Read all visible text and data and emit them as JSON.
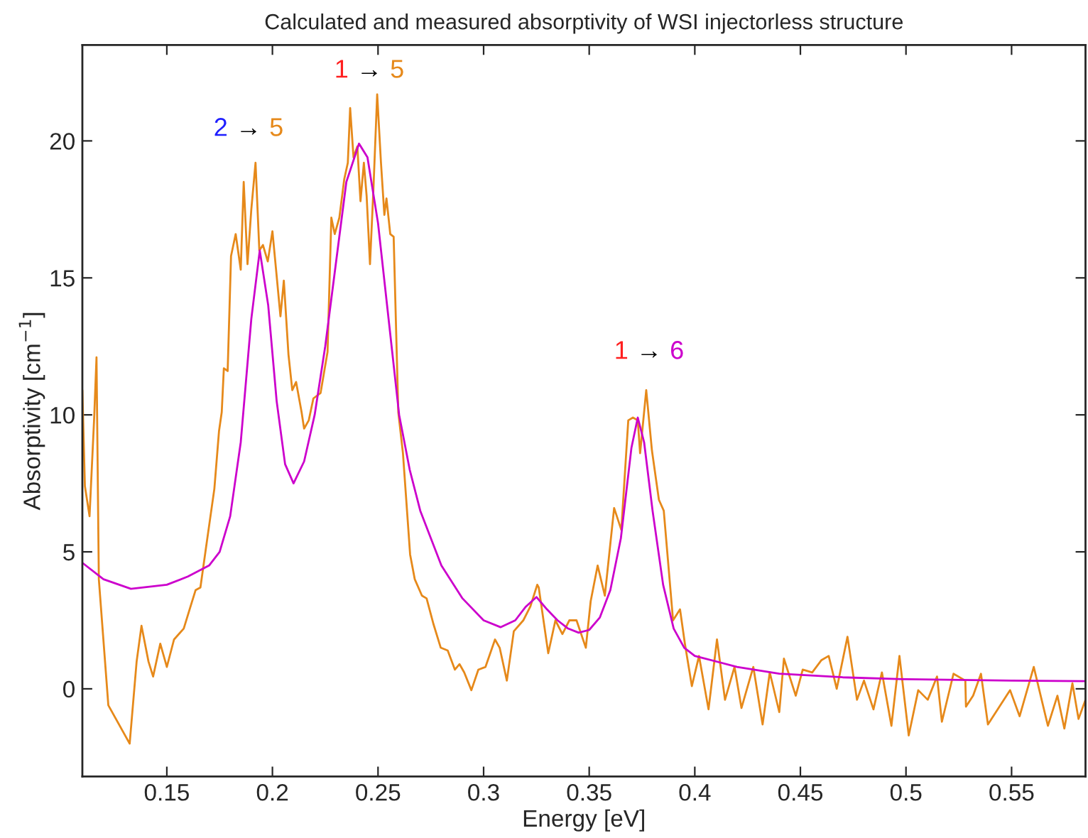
{
  "chart_data": {
    "type": "line",
    "title": "Calculated and measured absorptivity of WSI injectorless structure",
    "xlabel": "Energy [eV]",
    "ylabel": "Absorptivity [cm$^{−1}$]",
    "xlim": [
      0.11,
      0.585
    ],
    "xticks": [
      0.15,
      0.2,
      0.25,
      0.3,
      0.35,
      0.4,
      0.45,
      0.5,
      0.55
    ],
    "ylim": [
      -3.2,
      23.5
    ],
    "yticks": [
      0,
      5,
      10,
      15,
      20
    ],
    "grid": false,
    "legend": false,
    "marker": "none",
    "line_style": "solid",
    "series": [
      {
        "color": "#e6891a",
        "x": [
          0.11,
          0.1112,
          0.1134,
          0.1156,
          0.1167,
          0.1178,
          0.1196,
          0.1223,
          0.1235,
          0.13,
          0.1324,
          0.1357,
          0.138,
          0.1413,
          0.1435,
          0.1469,
          0.15,
          0.1534,
          0.158,
          0.1612,
          0.1636,
          0.1659,
          0.169,
          0.1725,
          0.1747,
          0.176,
          0.177,
          0.1788,
          0.1804,
          0.1826,
          0.185,
          0.1864,
          0.1882,
          0.19,
          0.192,
          0.1938,
          0.1955,
          0.1978,
          0.2,
          0.2016,
          0.2038,
          0.2054,
          0.2076,
          0.2094,
          0.2112,
          0.2138,
          0.215,
          0.2172,
          0.2194,
          0.2228,
          0.2261,
          0.2279,
          0.2295,
          0.2317,
          0.234,
          0.2357,
          0.2368,
          0.2384,
          0.2402,
          0.2417,
          0.2433,
          0.2446,
          0.2462,
          0.2478,
          0.2496,
          0.2514,
          0.253,
          0.254,
          0.2558,
          0.2574,
          0.2596,
          0.2618,
          0.2652,
          0.2674,
          0.2708,
          0.273,
          0.2763,
          0.2797,
          0.283,
          0.2864,
          0.2886,
          0.2908,
          0.2942,
          0.2975,
          0.3009,
          0.3054,
          0.3076,
          0.311,
          0.3143,
          0.3188,
          0.3221,
          0.3254,
          0.3261,
          0.3306,
          0.334,
          0.3373,
          0.3406,
          0.344,
          0.3484,
          0.3507,
          0.354,
          0.3574,
          0.3618,
          0.3652,
          0.3685,
          0.3707,
          0.373,
          0.3741,
          0.377,
          0.3797,
          0.383,
          0.3853,
          0.3897,
          0.393,
          0.3953,
          0.3986,
          0.402,
          0.4065,
          0.4105,
          0.4143,
          0.4188,
          0.4221,
          0.4277,
          0.4321,
          0.4355,
          0.44,
          0.4422,
          0.4478,
          0.4511,
          0.4556,
          0.46,
          0.4634,
          0.4672,
          0.4723,
          0.4768,
          0.4801,
          0.4846,
          0.4886,
          0.4931,
          0.4969,
          0.5013,
          0.5058,
          0.5103,
          0.5147,
          0.517,
          0.5225,
          0.5281,
          0.5284,
          0.5318,
          0.5355,
          0.5388,
          0.5493,
          0.5538,
          0.5605,
          0.5672,
          0.5717,
          0.575,
          0.5788,
          0.5817,
          0.585
        ],
        "values": [
          10.9,
          7.4,
          6.3,
          9.9,
          12.1,
          4.0,
          null,
          -0.6,
          null,
          null,
          -2.0,
          1.0,
          2.3,
          1.0,
          0.45,
          1.65,
          0.8,
          1.8,
          2.2,
          3.0,
          3.6,
          3.7,
          5.4,
          7.3,
          9.4,
          10.1,
          11.7,
          11.6,
          15.8,
          16.6,
          15.3,
          18.5,
          15.5,
          17.5,
          19.2,
          16.0,
          16.2,
          15.6,
          16.7,
          15.4,
          13.6,
          14.9,
          12.2,
          10.9,
          11.2,
          10.1,
          9.5,
          9.8,
          10.6,
          10.8,
          12.3,
          17.2,
          16.6,
          17.2,
          18.6,
          19.2,
          21.2,
          19.4,
          19.8,
          17.8,
          19.2,
          18.0,
          15.5,
          18.2,
          21.7,
          19.2,
          17.3,
          17.9,
          16.6,
          16.5,
          10.1,
          8.6,
          4.9,
          4.0,
          3.4,
          3.3,
          2.35,
          1.5,
          1.4,
          0.7,
          0.9,
          0.6,
          -0.05,
          0.7,
          0.8,
          1.8,
          1.5,
          0.3,
          2.1,
          2.5,
          3.0,
          3.8,
          3.7,
          1.3,
          2.5,
          2.0,
          2.5,
          2.5,
          1.5,
          3.2,
          4.5,
          3.4,
          6.6,
          5.8,
          9.8,
          9.9,
          9.8,
          8.6,
          10.9,
          8.7,
          6.9,
          6.5,
          2.5,
          2.9,
          1.65,
          0.1,
          1.2,
          -0.75,
          1.8,
          -0.4,
          0.8,
          -0.7,
          0.8,
          -1.3,
          0.6,
          -0.85,
          1.1,
          -0.25,
          0.7,
          0.6,
          1.05,
          1.2,
          0.0,
          1.9,
          -0.4,
          0.3,
          -0.75,
          0.6,
          -1.35,
          1.2,
          -1.7,
          -0.05,
          -0.4,
          0.45,
          -1.2,
          0.55,
          0.3,
          -0.65,
          -0.25,
          0.55,
          -1.3,
          -0.05,
          -1.0,
          0.8,
          -1.35,
          -0.25,
          -1.45,
          0.2,
          -1.1,
          -0.4
        ]
      },
      {
        "color": "#cc00cc",
        "x": [
          0.11,
          0.12,
          0.133,
          0.15,
          0.16,
          0.17,
          0.175,
          0.18,
          0.185,
          0.19,
          0.194,
          0.198,
          0.202,
          0.206,
          0.21,
          0.215,
          0.22,
          0.225,
          0.23,
          0.235,
          0.241,
          0.245,
          0.25,
          0.255,
          0.26,
          0.265,
          0.27,
          0.28,
          0.29,
          0.3,
          0.308,
          0.315,
          0.32,
          0.325,
          0.33,
          0.335,
          0.34,
          0.345,
          0.35,
          0.355,
          0.36,
          0.365,
          0.37,
          0.373,
          0.376,
          0.38,
          0.385,
          0.39,
          0.395,
          0.4,
          0.42,
          0.44,
          0.47,
          0.5,
          0.55,
          0.585
        ],
        "values": [
          4.6,
          4.0,
          3.65,
          3.8,
          4.1,
          4.5,
          5.0,
          6.3,
          9.0,
          13.5,
          16.0,
          14.0,
          10.5,
          8.2,
          7.5,
          8.3,
          10.0,
          12.5,
          15.5,
          18.5,
          19.9,
          19.4,
          17.0,
          13.5,
          10.0,
          8.0,
          6.5,
          4.5,
          3.3,
          2.5,
          2.25,
          2.5,
          3.0,
          3.35,
          2.9,
          2.5,
          2.2,
          2.05,
          2.15,
          2.6,
          3.6,
          5.5,
          8.8,
          9.9,
          9.0,
          6.5,
          3.8,
          2.2,
          1.5,
          1.2,
          0.8,
          0.55,
          0.42,
          0.35,
          0.3,
          0.28
        ]
      }
    ],
    "annotations": [
      "2 → 5",
      "1 → 5",
      "1 → 6"
    ]
  }
}
